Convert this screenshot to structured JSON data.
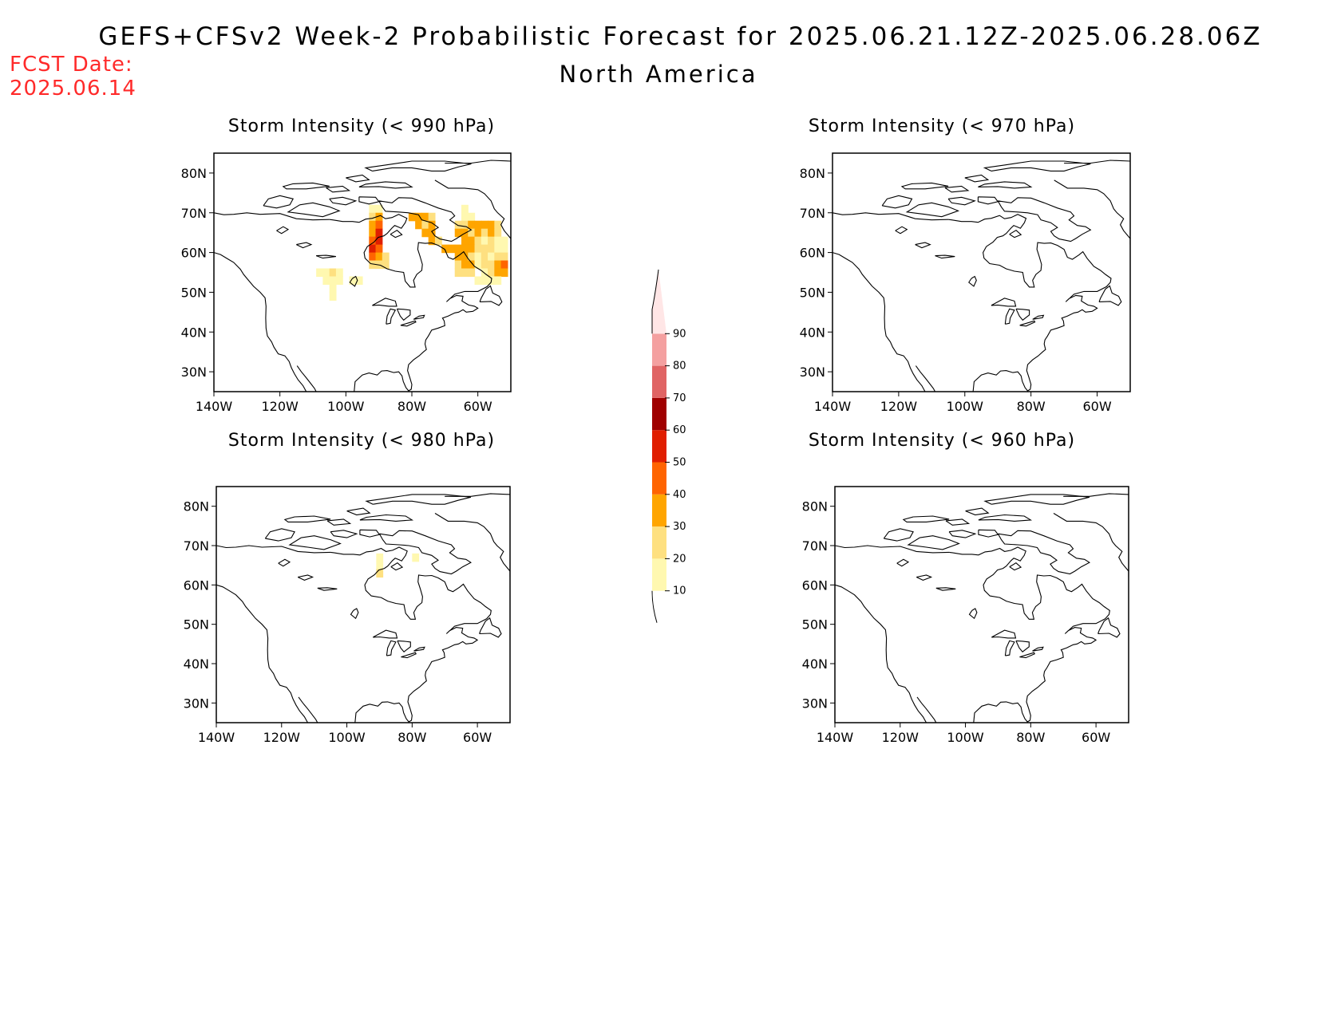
{
  "header": {
    "title": "GEFS+CFSv2 Week-2 Probabilistic Forecast for 2025.06.21.12Z-2025.06.28.06Z",
    "subtitle": "North America",
    "fcst_label": "FCST Date:",
    "fcst_date": "2025.06.14"
  },
  "map_extent": {
    "lon": [
      -140,
      -50
    ],
    "lat": [
      25,
      85
    ]
  },
  "axes": {
    "lat_ticks": [
      {
        "value": 80,
        "label": "80N"
      },
      {
        "value": 70,
        "label": "70N"
      },
      {
        "value": 60,
        "label": "60N"
      },
      {
        "value": 50,
        "label": "50N"
      },
      {
        "value": 40,
        "label": "40N"
      },
      {
        "value": 30,
        "label": "30N"
      }
    ],
    "lon_ticks": [
      {
        "value": -140,
        "label": "140W"
      },
      {
        "value": -120,
        "label": "120W"
      },
      {
        "value": -100,
        "label": "100W"
      },
      {
        "value": -80,
        "label": "80W"
      },
      {
        "value": -60,
        "label": "60W"
      }
    ]
  },
  "panels": [
    {
      "title": "Storm Intensity (< 990 hPa)",
      "cells": [
        {
          "lon": -108,
          "lat": 55,
          "p": 15
        },
        {
          "lon": -106,
          "lat": 55,
          "p": 15
        },
        {
          "lon": -104,
          "lat": 55,
          "p": 22
        },
        {
          "lon": -102,
          "lat": 55,
          "p": 15
        },
        {
          "lon": -106,
          "lat": 53,
          "p": 15
        },
        {
          "lon": -104,
          "lat": 53,
          "p": 15
        },
        {
          "lon": -102,
          "lat": 53,
          "p": 15
        },
        {
          "lon": -104,
          "lat": 51,
          "p": 15
        },
        {
          "lon": -104,
          "lat": 49,
          "p": 15
        },
        {
          "lon": -98,
          "lat": 53,
          "p": 15
        },
        {
          "lon": -96,
          "lat": 53,
          "p": 15
        },
        {
          "lon": -92,
          "lat": 71,
          "p": 15
        },
        {
          "lon": -90,
          "lat": 71,
          "p": 15
        },
        {
          "lon": -92,
          "lat": 69,
          "p": 22
        },
        {
          "lon": -90,
          "lat": 69,
          "p": 30
        },
        {
          "lon": -92,
          "lat": 67,
          "p": 30
        },
        {
          "lon": -90,
          "lat": 67,
          "p": 45
        },
        {
          "lon": -92,
          "lat": 65,
          "p": 30
        },
        {
          "lon": -90,
          "lat": 65,
          "p": 55
        },
        {
          "lon": -92,
          "lat": 63,
          "p": 45
        },
        {
          "lon": -90,
          "lat": 63,
          "p": 55
        },
        {
          "lon": -92,
          "lat": 61,
          "p": 55
        },
        {
          "lon": -90,
          "lat": 61,
          "p": 45
        },
        {
          "lon": -92,
          "lat": 59,
          "p": 45
        },
        {
          "lon": -90,
          "lat": 59,
          "p": 30
        },
        {
          "lon": -88,
          "lat": 59,
          "p": 22
        },
        {
          "lon": -92,
          "lat": 57,
          "p": 22
        },
        {
          "lon": -90,
          "lat": 57,
          "p": 22
        },
        {
          "lon": -88,
          "lat": 57,
          "p": 22
        },
        {
          "lon": -80,
          "lat": 69,
          "p": 35
        },
        {
          "lon": -78,
          "lat": 69,
          "p": 35
        },
        {
          "lon": -76,
          "lat": 69,
          "p": 35
        },
        {
          "lon": -74,
          "lat": 69,
          "p": 22
        },
        {
          "lon": -78,
          "lat": 67,
          "p": 35
        },
        {
          "lon": -76,
          "lat": 67,
          "p": 22
        },
        {
          "lon": -74,
          "lat": 67,
          "p": 35
        },
        {
          "lon": -76,
          "lat": 65,
          "p": 35
        },
        {
          "lon": -74,
          "lat": 65,
          "p": 35
        },
        {
          "lon": -74,
          "lat": 63,
          "p": 35
        },
        {
          "lon": -72,
          "lat": 63,
          "p": 22
        },
        {
          "lon": -70,
          "lat": 61,
          "p": 35
        },
        {
          "lon": -68,
          "lat": 61,
          "p": 35
        },
        {
          "lon": -66,
          "lat": 61,
          "p": 35
        },
        {
          "lon": -64,
          "lat": 71,
          "p": 15
        },
        {
          "lon": -64,
          "lat": 69,
          "p": 15
        },
        {
          "lon": -62,
          "lat": 69,
          "p": 15
        },
        {
          "lon": -66,
          "lat": 67,
          "p": 22
        },
        {
          "lon": -64,
          "lat": 67,
          "p": 22
        },
        {
          "lon": -62,
          "lat": 67,
          "p": 35
        },
        {
          "lon": -60,
          "lat": 67,
          "p": 35
        },
        {
          "lon": -58,
          "lat": 67,
          "p": 35
        },
        {
          "lon": -56,
          "lat": 67,
          "p": 35
        },
        {
          "lon": -54,
          "lat": 67,
          "p": 22
        },
        {
          "lon": -66,
          "lat": 65,
          "p": 35
        },
        {
          "lon": -64,
          "lat": 65,
          "p": 35
        },
        {
          "lon": -62,
          "lat": 65,
          "p": 22
        },
        {
          "lon": -60,
          "lat": 65,
          "p": 35
        },
        {
          "lon": -58,
          "lat": 65,
          "p": 22
        },
        {
          "lon": -56,
          "lat": 65,
          "p": 35
        },
        {
          "lon": -54,
          "lat": 65,
          "p": 22
        },
        {
          "lon": -64,
          "lat": 63,
          "p": 35
        },
        {
          "lon": -62,
          "lat": 63,
          "p": 35
        },
        {
          "lon": -60,
          "lat": 63,
          "p": 22
        },
        {
          "lon": -58,
          "lat": 63,
          "p": 15
        },
        {
          "lon": -56,
          "lat": 63,
          "p": 22
        },
        {
          "lon": -54,
          "lat": 63,
          "p": 15
        },
        {
          "lon": -52,
          "lat": 63,
          "p": 15
        },
        {
          "lon": -64,
          "lat": 61,
          "p": 35
        },
        {
          "lon": -62,
          "lat": 61,
          "p": 35
        },
        {
          "lon": -60,
          "lat": 61,
          "p": 22
        },
        {
          "lon": -58,
          "lat": 61,
          "p": 22
        },
        {
          "lon": -56,
          "lat": 61,
          "p": 22
        },
        {
          "lon": -54,
          "lat": 61,
          "p": 15
        },
        {
          "lon": -52,
          "lat": 61,
          "p": 15
        },
        {
          "lon": -66,
          "lat": 59,
          "p": 35
        },
        {
          "lon": -64,
          "lat": 59,
          "p": 35
        },
        {
          "lon": -62,
          "lat": 59,
          "p": 22
        },
        {
          "lon": -60,
          "lat": 59,
          "p": 15
        },
        {
          "lon": -58,
          "lat": 59,
          "p": 22
        },
        {
          "lon": -56,
          "lat": 59,
          "p": 15
        },
        {
          "lon": -54,
          "lat": 59,
          "p": 22
        },
        {
          "lon": -52,
          "lat": 59,
          "p": 22
        },
        {
          "lon": -66,
          "lat": 57,
          "p": 22
        },
        {
          "lon": -64,
          "lat": 57,
          "p": 35
        },
        {
          "lon": -62,
          "lat": 57,
          "p": 35
        },
        {
          "lon": -60,
          "lat": 57,
          "p": 15
        },
        {
          "lon": -58,
          "lat": 57,
          "p": 22
        },
        {
          "lon": -56,
          "lat": 57,
          "p": 22
        },
        {
          "lon": -54,
          "lat": 57,
          "p": 35
        },
        {
          "lon": -52,
          "lat": 57,
          "p": 45
        },
        {
          "lon": -66,
          "lat": 55,
          "p": 22
        },
        {
          "lon": -64,
          "lat": 55,
          "p": 22
        },
        {
          "lon": -62,
          "lat": 55,
          "p": 22
        },
        {
          "lon": -58,
          "lat": 55,
          "p": 15
        },
        {
          "lon": -56,
          "lat": 55,
          "p": 22
        },
        {
          "lon": -54,
          "lat": 55,
          "p": 35
        },
        {
          "lon": -52,
          "lat": 55,
          "p": 35
        },
        {
          "lon": -60,
          "lat": 53,
          "p": 15
        },
        {
          "lon": -58,
          "lat": 53,
          "p": 15
        },
        {
          "lon": -56,
          "lat": 53,
          "p": 15
        },
        {
          "lon": -54,
          "lat": 53,
          "p": 15
        }
      ]
    },
    {
      "title": "Storm Intensity (< 970 hPa)",
      "cells": []
    },
    {
      "title": "Storm Intensity (< 980 hPa)",
      "cells": [
        {
          "lon": -90,
          "lat": 67,
          "p": 15
        },
        {
          "lon": -90,
          "lat": 65,
          "p": 15
        },
        {
          "lon": -90,
          "lat": 63,
          "p": 22
        },
        {
          "lon": -79,
          "lat": 67,
          "p": 15
        }
      ]
    },
    {
      "title": "Storm Intensity (< 960 hPa)",
      "cells": []
    }
  ],
  "colorbar": {
    "bins": [
      {
        "min": 10,
        "max": 20,
        "color": "#fff8b0"
      },
      {
        "min": 20,
        "max": 30,
        "color": "#fee080"
      },
      {
        "min": 30,
        "max": 40,
        "color": "#ffa500"
      },
      {
        "min": 40,
        "max": 50,
        "color": "#ff6400"
      },
      {
        "min": 50,
        "max": 60,
        "color": "#e01e00"
      },
      {
        "min": 60,
        "max": 70,
        "color": "#a00000"
      },
      {
        "min": 70,
        "max": 80,
        "color": "#e06464"
      },
      {
        "min": 80,
        "max": 90,
        "color": "#f4a0a0"
      },
      {
        "min": 90,
        "max": 100,
        "color": "#ffe6e6"
      }
    ],
    "labels": [
      "10",
      "20",
      "30",
      "40",
      "50",
      "60",
      "70",
      "80",
      "90"
    ]
  },
  "coastline_color": "#000000"
}
